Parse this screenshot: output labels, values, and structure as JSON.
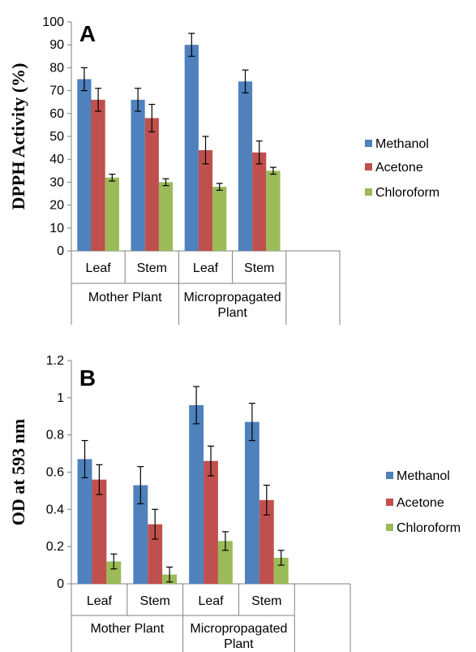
{
  "chart_data": [
    {
      "type": "bar",
      "panel_label": "A",
      "ylabel": "DPPH  Activity (%)",
      "ylim": [
        0,
        100
      ],
      "yticks": [
        "0",
        "10",
        "20",
        "30",
        "40",
        "50",
        "60",
        "70",
        "80",
        "90",
        "100"
      ],
      "categories": [
        "Leaf",
        "Stem",
        "Leaf",
        "Stem"
      ],
      "groups": [
        {
          "label": "Mother Plant",
          "lines": [
            "Mother Plant"
          ]
        },
        {
          "label": "Micropropagated Plant",
          "lines": [
            "Micropropagated",
            "Plant"
          ]
        }
      ],
      "series": [
        {
          "name": "Methanol",
          "color": "#4F81BD",
          "values": [
            75,
            66,
            90,
            74
          ],
          "errors": [
            5,
            5,
            5,
            5
          ]
        },
        {
          "name": "Acetone",
          "color": "#C0504D",
          "values": [
            66,
            58,
            44,
            43
          ],
          "errors": [
            5,
            6,
            6,
            5
          ]
        },
        {
          "name": "Chloroform",
          "color": "#9BBB59",
          "values": [
            32,
            30,
            28,
            35
          ],
          "errors": [
            1.5,
            1.5,
            1.5,
            1.5
          ]
        }
      ],
      "legend_position": "right",
      "grid": false
    },
    {
      "type": "bar",
      "panel_label": "B",
      "ylabel": "OD at 593 nm",
      "ylim": [
        0,
        1.2
      ],
      "yticks": [
        "0",
        "0.2",
        "0.4",
        "0.6",
        "0.8",
        "1",
        "1.2"
      ],
      "categories": [
        "Leaf",
        "Stem",
        "Leaf",
        "Stem"
      ],
      "groups": [
        {
          "label": "Mother Plant",
          "lines": [
            "Mother Plant"
          ]
        },
        {
          "label": "Micropropagated Plant",
          "lines": [
            "Micropropagated",
            "Plant"
          ]
        }
      ],
      "series": [
        {
          "name": "Methanol",
          "color": "#4F81BD",
          "values": [
            0.67,
            0.53,
            0.96,
            0.87
          ],
          "errors": [
            0.1,
            0.1,
            0.1,
            0.1
          ]
        },
        {
          "name": "Acetone",
          "color": "#C0504D",
          "values": [
            0.56,
            0.32,
            0.66,
            0.45
          ],
          "errors": [
            0.08,
            0.08,
            0.08,
            0.08
          ]
        },
        {
          "name": "Chloroform",
          "color": "#9BBB59",
          "values": [
            0.12,
            0.05,
            0.23,
            0.14
          ],
          "errors": [
            0.04,
            0.04,
            0.05,
            0.04
          ]
        }
      ],
      "legend_position": "right",
      "grid": false
    }
  ]
}
